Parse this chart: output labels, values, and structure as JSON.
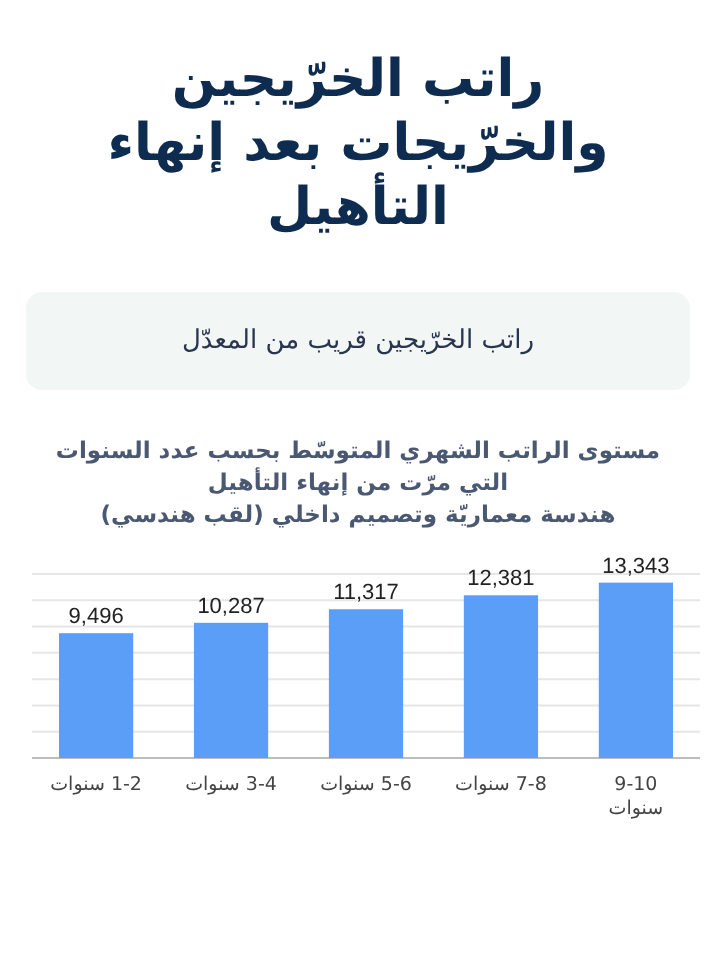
{
  "chart_data": {
    "type": "bar",
    "title": "راتب الخرّيجين والخرّيجات بعد إنهاء التأهيل",
    "subtitle": "مستوى الراتب الشهري المتوسّط بحسب عدد السنوات\nالتي مرّت من إنهاء التأهيل\nهندسة معماريّة وتصميم داخلي (لقب هندسي)",
    "annotations": [
      "راتب الخرّيجين قريب من المعدّل"
    ],
    "categories": [
      "1-2 سنوات",
      "3-4 سنوات",
      "5-6 سنوات",
      "7-8 سنوات",
      "9-10 سنوات"
    ],
    "values": [
      9496,
      10287,
      11317,
      12381,
      13343
    ],
    "value_labels": [
      "9,496",
      "10,287",
      "11,317",
      "12,381",
      "13,343"
    ],
    "color": "#5b9ef7",
    "ylim": [
      0,
      14000
    ],
    "yticks": [
      {
        "value": 0,
        "label": null
      },
      {
        "value": 2000,
        "label": null
      },
      {
        "value": 4000,
        "label": null
      },
      {
        "value": 6000,
        "label": null
      },
      {
        "value": 8000,
        "label": null
      },
      {
        "value": 10000,
        "label": null
      },
      {
        "value": 12000,
        "label": null
      },
      {
        "value": 14000,
        "label": null
      }
    ],
    "grid": "y",
    "tick_labels": "x"
  }
}
